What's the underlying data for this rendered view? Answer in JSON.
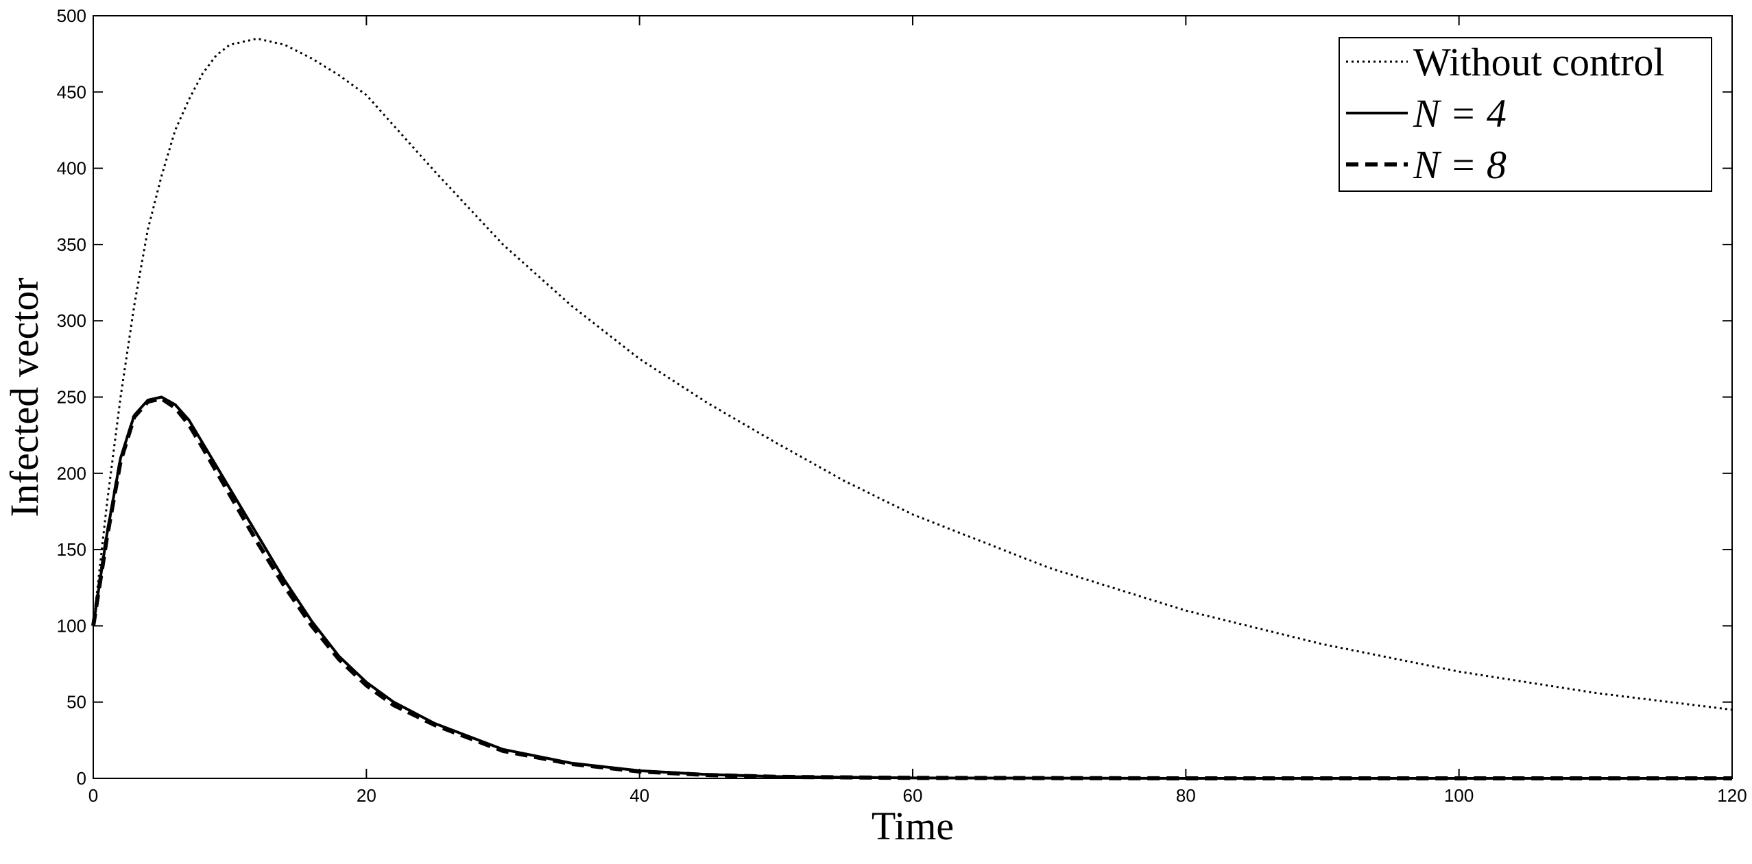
{
  "chart_data": {
    "type": "line",
    "xlabel": "Time",
    "ylabel": "Infected vector",
    "xlim": [
      0,
      120
    ],
    "ylim": [
      0,
      500
    ],
    "xticks": [
      0,
      20,
      40,
      60,
      80,
      100,
      120
    ],
    "yticks": [
      0,
      50,
      100,
      150,
      200,
      250,
      300,
      350,
      400,
      450,
      500
    ],
    "grid": false,
    "legend_position": "upper-right",
    "series": [
      {
        "name": "Without control",
        "color": "#000000",
        "style": "dotted",
        "x": [
          0,
          1,
          2,
          3,
          4,
          5,
          6,
          7,
          8,
          9,
          10,
          12,
          14,
          16,
          18,
          20,
          25,
          30,
          35,
          40,
          45,
          50,
          55,
          60,
          70,
          80,
          90,
          100,
          110,
          120
        ],
        "values": [
          100,
          180,
          250,
          310,
          360,
          395,
          425,
          445,
          462,
          474,
          481,
          485,
          481,
          472,
          461,
          448,
          398,
          350,
          310,
          275,
          246,
          220,
          195,
          173,
          138,
          110,
          88,
          70,
          56,
          45
        ]
      },
      {
        "name": "N = 4",
        "color": "#000000",
        "style": "solid",
        "x": [
          0,
          1,
          2,
          3,
          4,
          5,
          6,
          7,
          8,
          10,
          12,
          14,
          16,
          18,
          20,
          22,
          25,
          30,
          35,
          40,
          45,
          50,
          60,
          80,
          100,
          120
        ],
        "values": [
          100,
          160,
          210,
          238,
          248,
          250,
          245,
          235,
          220,
          190,
          160,
          130,
          103,
          80,
          63,
          50,
          36,
          19,
          10,
          5,
          2.5,
          1.2,
          0.3,
          0,
          0,
          0
        ]
      },
      {
        "name": "N = 8",
        "color": "#000000",
        "style": "dashed",
        "x": [
          0,
          1,
          2,
          3,
          4,
          5,
          6,
          7,
          8,
          10,
          12,
          14,
          16,
          18,
          20,
          22,
          25,
          30,
          35,
          40,
          45,
          50,
          60,
          80,
          100,
          120
        ],
        "values": [
          100,
          158,
          208,
          237,
          247,
          249,
          243,
          232,
          217,
          186,
          155,
          126,
          100,
          78,
          61,
          48,
          35,
          18,
          9.5,
          4.5,
          2.2,
          1,
          0.3,
          0,
          0,
          0
        ]
      }
    ]
  }
}
